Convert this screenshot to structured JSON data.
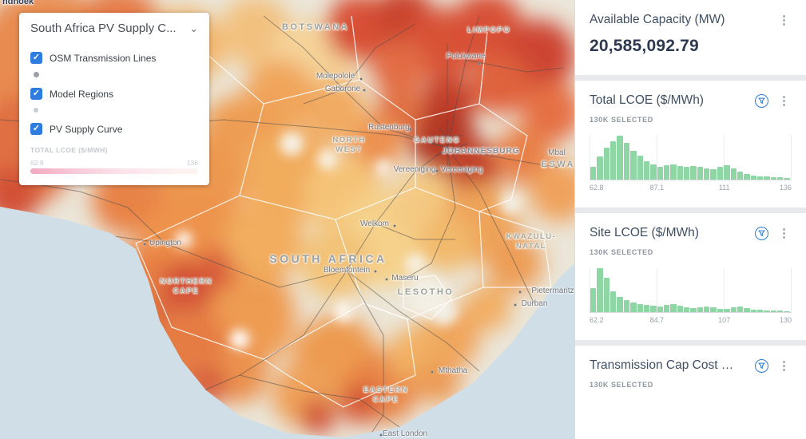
{
  "icons": {
    "kebab": "⋮",
    "chevron": "⌄",
    "check": "✓"
  },
  "colors": {
    "accent_blue": "#2e7ce0",
    "histogram_green": "#8ed6a3",
    "legend_pink": "#f3a9c0",
    "heat_low": "#f6d295",
    "heat_high": "#a52a1a",
    "ocean": "#cfdee7"
  },
  "layer_panel": {
    "title": "South Africa PV Supply C...",
    "layers": [
      {
        "label": "OSM Transmission Lines",
        "checked": true
      },
      {
        "label": "Model Regions",
        "checked": true
      },
      {
        "label": "PV Supply Curve",
        "checked": true
      }
    ],
    "legend": {
      "label": "TOTAL LCOE ($/MWH)",
      "min": "62.8",
      "max": "136"
    }
  },
  "sidebar": {
    "cards": [
      {
        "title": "Available Capacity (MW)",
        "value": "20,585,092.79"
      },
      {
        "title": "Total LCOE ($/MWh)",
        "selected": "130K SELECTED",
        "histogram": {
          "type": "bar",
          "xmin": 62.8,
          "xmax": 136,
          "ticks": [
            "62.8",
            "87.1",
            "111",
            "136"
          ],
          "bars": [
            30,
            52,
            72,
            88,
            100,
            84,
            66,
            55,
            42,
            34,
            30,
            32,
            34,
            31,
            29,
            31,
            29,
            26,
            23,
            30,
            32,
            26,
            19,
            13,
            10,
            8,
            7,
            6,
            5,
            4
          ]
        }
      },
      {
        "title": "Site LCOE ($/MWh)",
        "selected": "130K SELECTED",
        "histogram": {
          "type": "bar",
          "xmin": 62.2,
          "xmax": 130,
          "ticks": [
            "62.2",
            "84.7",
            "107",
            "130"
          ],
          "bars": [
            55,
            100,
            78,
            48,
            34,
            27,
            22,
            19,
            16,
            14,
            13,
            16,
            19,
            15,
            11,
            9,
            11,
            13,
            11,
            8,
            7,
            11,
            13,
            9,
            6,
            5,
            4,
            3,
            3,
            2
          ]
        }
      },
      {
        "title": "Transmission Cap Cost …",
        "selected": "130K SELECTED"
      }
    ]
  },
  "map": {
    "labels": [
      {
        "text": "ndhoek",
        "kind": "city"
      },
      {
        "text": "BOTSWANA",
        "kind": "country"
      },
      {
        "text": "LIMPOPO",
        "kind": "province"
      },
      {
        "text": "Polokwane",
        "kind": "city"
      },
      {
        "text": "Molepolole",
        "kind": "city"
      },
      {
        "text": "Gaborone",
        "kind": "city"
      },
      {
        "text": "Rustenburg",
        "kind": "city"
      },
      {
        "text": "NORTH WEST",
        "kind": "province"
      },
      {
        "text": "GAUTENG",
        "kind": "province"
      },
      {
        "text": "JOHANNESBURG",
        "kind": "city-caps"
      },
      {
        "text": "Vereeniging",
        "kind": "city"
      },
      {
        "text": "Vereeniging",
        "kind": "city"
      },
      {
        "text": "ESWAT",
        "kind": "country"
      },
      {
        "text": "Mbal",
        "kind": "city"
      },
      {
        "text": "Welkom",
        "kind": "city"
      },
      {
        "text": "KWAZULU-NATAL",
        "kind": "province"
      },
      {
        "text": "Upington",
        "kind": "city"
      },
      {
        "text": "SOUTH AFRICA",
        "kind": "country-large"
      },
      {
        "text": "Bloemfontein",
        "kind": "city"
      },
      {
        "text": "Maseru",
        "kind": "city"
      },
      {
        "text": "LESOTHO",
        "kind": "country"
      },
      {
        "text": "NORTHERN CAPE",
        "kind": "province"
      },
      {
        "text": "Pietermaritz",
        "kind": "city"
      },
      {
        "text": "Durban",
        "kind": "city"
      },
      {
        "text": "Mthatha",
        "kind": "city"
      },
      {
        "text": "EASTERN CAPE",
        "kind": "province"
      },
      {
        "text": "East London",
        "kind": "city"
      }
    ]
  }
}
